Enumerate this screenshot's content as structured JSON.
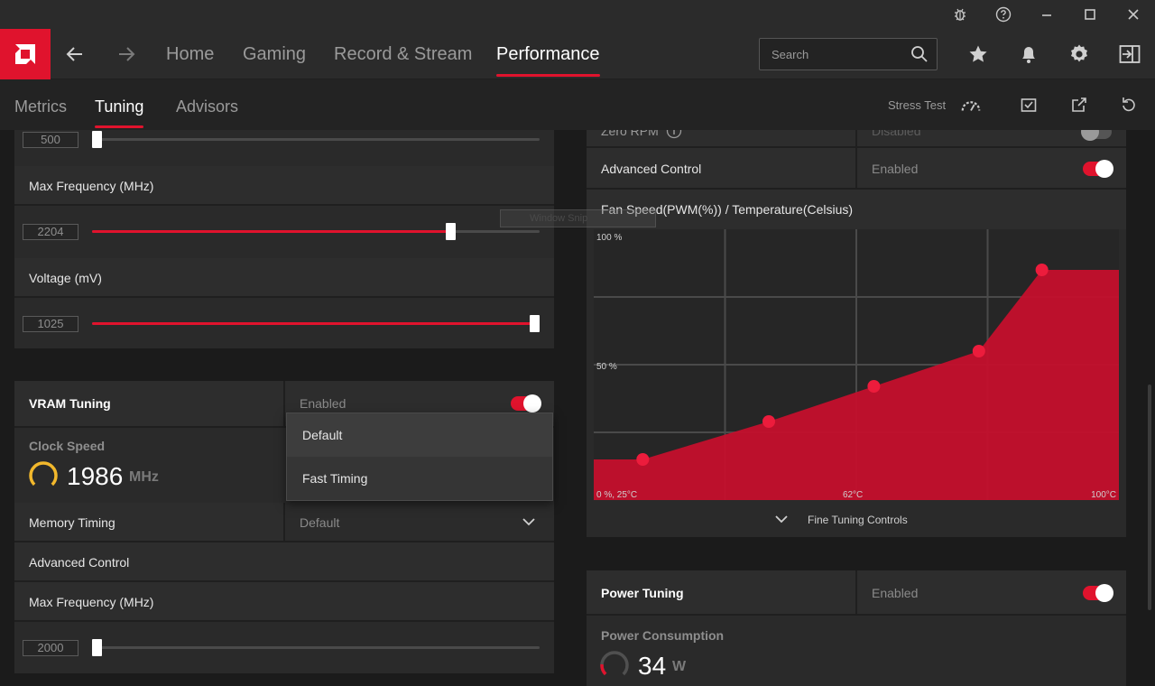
{
  "titlebar": {
    "icons": [
      "bug-icon",
      "help-icon",
      "minimize-icon",
      "maximize-icon",
      "close-icon"
    ]
  },
  "nav": {
    "tabs": [
      {
        "label": "Home"
      },
      {
        "label": "Gaming"
      },
      {
        "label": "Record & Stream"
      },
      {
        "label": "Performance"
      }
    ],
    "active_tab": "Performance",
    "search_placeholder": "Search"
  },
  "subnav": {
    "tabs": [
      {
        "label": "Metrics"
      },
      {
        "label": "Tuning"
      },
      {
        "label": "Advisors"
      }
    ],
    "active_tab": "Tuning",
    "stress_test_label": "Stress Test"
  },
  "gpu_tuning": {
    "min_frequency_value": "500",
    "max_frequency_label": "Max Frequency (MHz)",
    "max_frequency_value": "2204",
    "voltage_label": "Voltage (mV)",
    "voltage_value": "1025",
    "slider_levels": {
      "min_frequency": 0.0,
      "max_frequency": 0.8,
      "voltage": 1.0
    }
  },
  "vram_tuning": {
    "title": "VRAM Tuning",
    "status": "Enabled",
    "clock_speed_label": "Clock Speed",
    "clock_speed_value": "1986",
    "clock_speed_unit": "MHz",
    "memory_timing_label": "Memory Timing",
    "memory_timing_value": "Default",
    "memory_timing_options": [
      "Default",
      "Fast Timing"
    ],
    "advanced_control_label": "Advanced Control",
    "max_frequency_label": "Max Frequency (MHz)",
    "max_frequency_value": "2000",
    "max_frequency_level": 0.0
  },
  "fan_tuning": {
    "zero_rpm_label": "Zero RPM",
    "zero_rpm_status": "Disabled",
    "advanced_control_label": "Advanced Control",
    "advanced_control_status": "Enabled",
    "chart_title": "Fan Speed(PWM(%)) / Temperature(Celsius)",
    "fine_tuning_label": "Fine Tuning Controls"
  },
  "power_tuning": {
    "title": "Power Tuning",
    "status": "Enabled",
    "consumption_label": "Power Consumption",
    "consumption_value": "34",
    "consumption_unit": "W"
  },
  "overlay": {
    "window_snip_label": "Window Snip"
  },
  "colors": {
    "accent": "#e0132d",
    "background": "#1b1b1b",
    "panel": "#2d2d2d",
    "gauge_yellow": "#f2b82c"
  },
  "chart_data": {
    "type": "area",
    "title": "Fan Speed(PWM(%)) / Temperature(Celsius)",
    "ylabel_ticks": [
      "100 %",
      "50 %"
    ],
    "x_tick_labels": [
      "0 %, 25°C",
      "62°C",
      "100°C"
    ],
    "xlim": [
      25,
      100
    ],
    "ylim": [
      0,
      100
    ],
    "grid": true,
    "series": [
      {
        "x": [
          25,
          32,
          50,
          65,
          80,
          89,
          100
        ],
        "y": [
          15,
          15,
          29,
          42,
          55,
          85,
          85
        ]
      }
    ]
  }
}
